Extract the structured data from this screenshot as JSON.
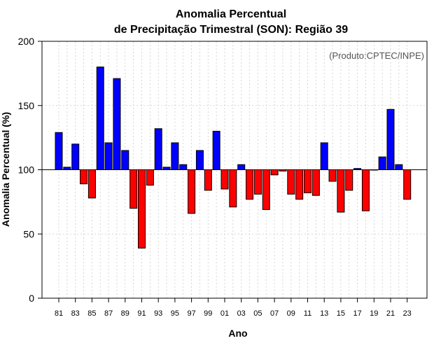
{
  "chart_data": {
    "type": "bar",
    "title_line1": "Anomalia Percentual",
    "title_line2": "de Precipitação Trimestral (SON): Região 39",
    "xlabel": "Ano",
    "ylabel": "Anomalia Percentual (%)",
    "annotation": "(Produto:CPTEC/INPE)",
    "baseline": 100,
    "ylim": [
      0,
      200
    ],
    "yticks": [
      0,
      50,
      100,
      150,
      200
    ],
    "grid": true,
    "colors": {
      "above": "#0000ff",
      "below": "#ff0000",
      "edge": "#000000",
      "grid": "#cccccc"
    },
    "xtick_labels": [
      "81",
      "83",
      "85",
      "87",
      "89",
      "91",
      "93",
      "95",
      "97",
      "99",
      "01",
      "03",
      "05",
      "07",
      "09",
      "11",
      "13",
      "15",
      "17",
      "19",
      "21",
      "23"
    ],
    "years": [
      1981,
      1982,
      1983,
      1984,
      1985,
      1986,
      1987,
      1988,
      1989,
      1990,
      1991,
      1992,
      1993,
      1994,
      1995,
      1996,
      1997,
      1998,
      1999,
      2000,
      2001,
      2002,
      2003,
      2004,
      2005,
      2006,
      2007,
      2008,
      2009,
      2010,
      2011,
      2012,
      2013,
      2014,
      2015,
      2016,
      2017,
      2018,
      2019,
      2020,
      2021,
      2022,
      2023
    ],
    "values": [
      129,
      102,
      120,
      89,
      78,
      180,
      121,
      171,
      115,
      70,
      39,
      88,
      132,
      102,
      121,
      104,
      66,
      115,
      84,
      130,
      85,
      71,
      104,
      77,
      81,
      69,
      96,
      99,
      81,
      77,
      82,
      80,
      121,
      91,
      67,
      84,
      101,
      68,
      100,
      110,
      147,
      104,
      77
    ]
  }
}
